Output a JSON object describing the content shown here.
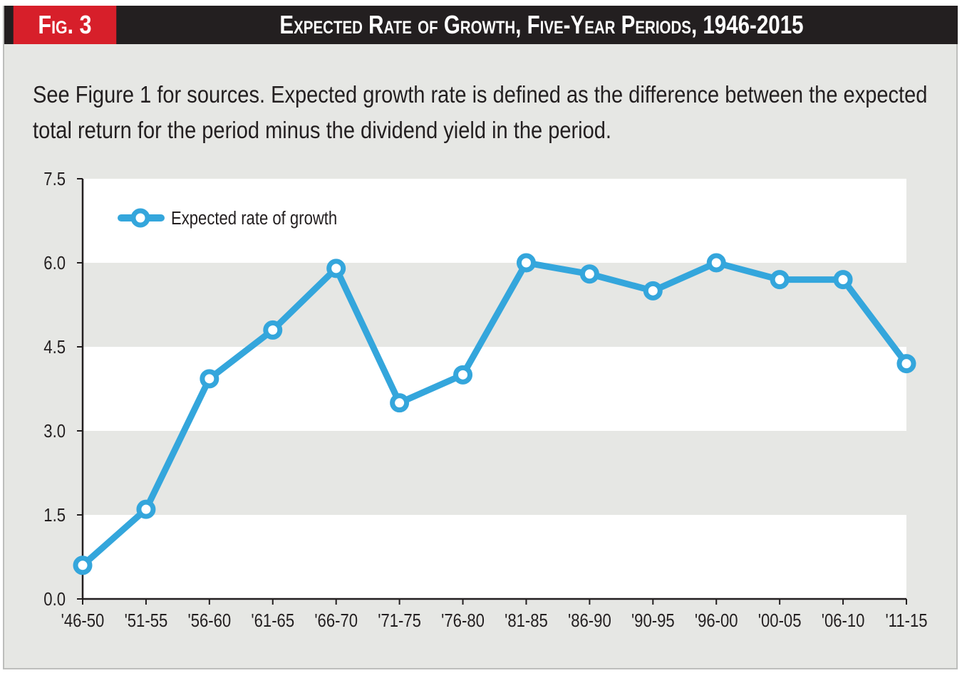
{
  "header": {
    "fig_label": "Fig. 3",
    "title": "Expected Rate of Growth, Five-Year Periods, 1946-2015"
  },
  "caption": "See Figure 1 for sources. Expected growth rate is defined as the difference between the expected total return for the period minus the dividend yield in the period.",
  "colors": {
    "accent_red": "#d71f2a",
    "header_black": "#231f20",
    "series_blue": "#34a6dc",
    "band_gray": "#e6e7e4",
    "band_white": "#ffffff"
  },
  "chart_data": {
    "type": "line",
    "title": "Expected Rate of Growth, Five-Year Periods, 1946-2015",
    "xlabel": "",
    "ylabel": "",
    "categories": [
      "'46-50",
      "'51-55",
      "'56-60",
      "'61-65",
      "'66-70",
      "'71-75",
      "'76-80",
      "'81-85",
      "'86-90",
      "'90-95",
      "'96-00",
      "'00-05",
      "'06-10",
      "'11-15"
    ],
    "series": [
      {
        "name": "Expected rate of growth",
        "values": [
          0.6,
          1.6,
          3.93,
          4.8,
          5.9,
          3.5,
          4.0,
          6.0,
          5.8,
          5.5,
          6.0,
          5.7,
          5.7,
          4.2
        ]
      }
    ],
    "ylim": [
      0,
      7.5
    ],
    "yticks": [
      "0.0",
      "1.5",
      "3.0",
      "4.5",
      "6.0",
      "7.5"
    ],
    "grid": "alternating horizontal bands",
    "legend_position": "top-left"
  }
}
